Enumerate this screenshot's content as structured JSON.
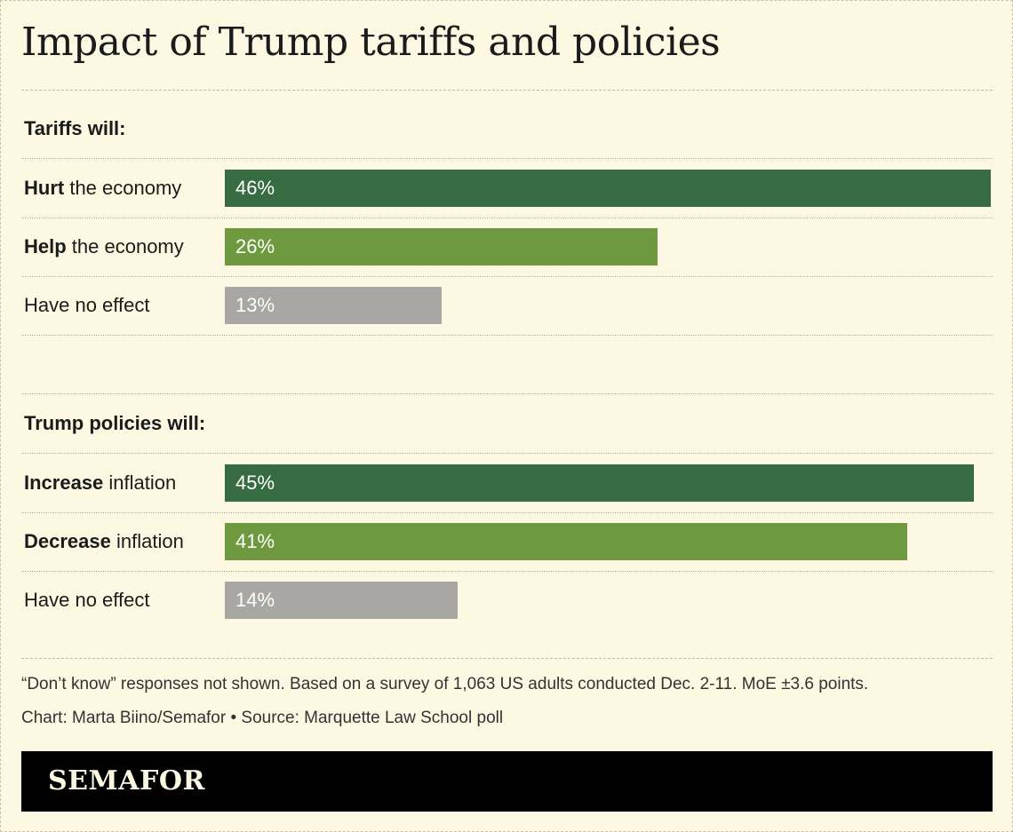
{
  "title": "Impact of Trump tariffs and policies",
  "colors": {
    "background": "#fcf8e2",
    "dark_green": "#376b41",
    "light_green": "#6e993e",
    "gray": "#a8a7a3"
  },
  "chart_data": [
    {
      "type": "bar",
      "title": "Tariffs will:",
      "unit": "%",
      "categories": [
        {
          "bold": "Hurt",
          "rest": " the economy"
        },
        {
          "bold": "Help",
          "rest": " the economy"
        },
        {
          "bold": "",
          "rest": "Have no effect"
        }
      ],
      "values": [
        46,
        26,
        13
      ],
      "value_labels": [
        "46%",
        "26%",
        "13%"
      ],
      "bar_colors": [
        "#376b41",
        "#6e993e",
        "#a8a7a3"
      ],
      "xlim": [
        0,
        46
      ]
    },
    {
      "type": "bar",
      "title": "Trump policies will:",
      "unit": "%",
      "categories": [
        {
          "bold": "Increase",
          "rest": " inflation"
        },
        {
          "bold": "Decrease",
          "rest": " inflation"
        },
        {
          "bold": "",
          "rest": "Have no effect"
        }
      ],
      "values": [
        45,
        41,
        14
      ],
      "value_labels": [
        "45%",
        "41%",
        "14%"
      ],
      "bar_colors": [
        "#376b41",
        "#6e993e",
        "#a8a7a3"
      ],
      "xlim": [
        0,
        46
      ]
    }
  ],
  "notes": {
    "methodology": "“Don’t know” responses not shown. Based on a survey of 1,063 US adults conducted Dec. 2-11. MoE ±3.6 points.",
    "credit": "Chart: Marta Biino/Semafor • Source: Marquette Law School poll"
  },
  "logo": "SEMAFOR"
}
